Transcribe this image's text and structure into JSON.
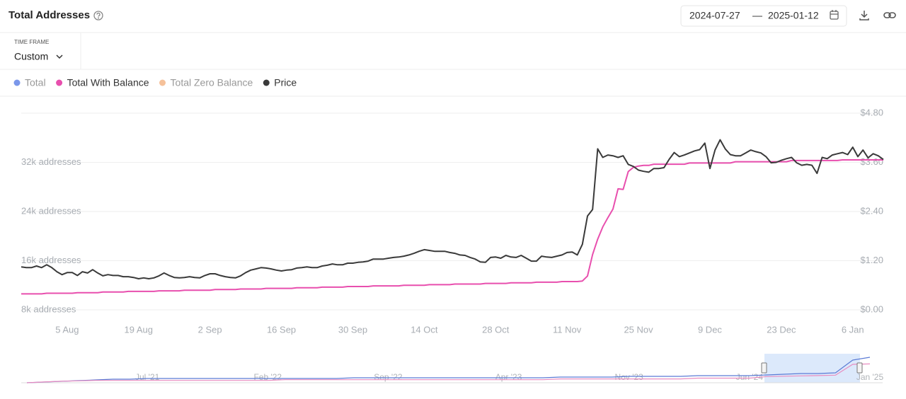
{
  "header": {
    "title": "Total Addresses",
    "date_from": "2024-07-27",
    "date_separator": "—",
    "date_to": "2025-01-12"
  },
  "timeframe": {
    "label": "TIME FRAME",
    "value": "Custom"
  },
  "chart_data": {
    "type": "line",
    "grid": true,
    "categories": [
      null,
      null,
      null,
      null,
      null,
      null,
      null,
      null,
      null,
      "5 Aug",
      null,
      null,
      null,
      null,
      null,
      null,
      null,
      null,
      null,
      null,
      null,
      null,
      null,
      "19 Aug",
      null,
      null,
      null,
      null,
      null,
      null,
      null,
      null,
      null,
      null,
      null,
      null,
      null,
      "2 Sep",
      null,
      null,
      null,
      null,
      null,
      null,
      null,
      null,
      null,
      null,
      null,
      null,
      null,
      "16 Sep",
      null,
      null,
      null,
      null,
      null,
      null,
      null,
      null,
      null,
      null,
      null,
      null,
      null,
      "30 Sep",
      null,
      null,
      null,
      null,
      null,
      null,
      null,
      null,
      null,
      null,
      null,
      null,
      null,
      "14 Oct",
      null,
      null,
      null,
      null,
      null,
      null,
      null,
      null,
      null,
      null,
      null,
      null,
      null,
      "28 Oct",
      null,
      null,
      null,
      null,
      null,
      null,
      null,
      null,
      null,
      null,
      null,
      null,
      null,
      "11 Nov",
      null,
      null,
      null,
      null,
      null,
      null,
      null,
      null,
      null,
      null,
      null,
      null,
      null,
      "25 Nov",
      null,
      null,
      null,
      null,
      null,
      null,
      null,
      null,
      null,
      null,
      null,
      null,
      null,
      "9 Dec",
      null,
      null,
      null,
      null,
      null,
      null,
      null,
      null,
      null,
      null,
      null,
      null,
      null,
      "23 Dec",
      null,
      null,
      null,
      null,
      null,
      null,
      null,
      null,
      null,
      null,
      null,
      null,
      null,
      "6 Jan",
      null,
      null,
      null,
      null,
      null,
      null
    ],
    "ylim": [
      8000,
      40000
    ],
    "yticks": [
      {
        "value": 8000,
        "label": "8k addresses"
      },
      {
        "value": 16000,
        "label": "16k addresses"
      },
      {
        "value": 24000,
        "label": "24k addresses"
      },
      {
        "value": 32000,
        "label": "32k addresses"
      }
    ],
    "y2lim": [
      0,
      4.8
    ],
    "y2ticks": [
      {
        "value": 0,
        "label": "$0.00"
      },
      {
        "value": 1.2,
        "label": "$1.20"
      },
      {
        "value": 2.4,
        "label": "$2.40"
      },
      {
        "value": 3.6,
        "label": "$3.60"
      },
      {
        "value": 4.8,
        "label": "$4.80"
      }
    ],
    "series": [
      {
        "name": "Total",
        "color": "#7b97ea",
        "visible": false
      },
      {
        "name": "Total With Balance",
        "color": "#e84fae",
        "visible": true,
        "values": [
          10600,
          10600,
          10600,
          10600,
          10600,
          10700,
          10700,
          10700,
          10700,
          10700,
          10700,
          10800,
          10800,
          10800,
          10800,
          10800,
          10900,
          10900,
          10900,
          10900,
          10900,
          11000,
          11000,
          11000,
          11000,
          11000,
          11000,
          11100,
          11100,
          11100,
          11100,
          11100,
          11200,
          11200,
          11200,
          11200,
          11200,
          11200,
          11300,
          11300,
          11300,
          11300,
          11300,
          11400,
          11400,
          11400,
          11400,
          11400,
          11500,
          11500,
          11500,
          11500,
          11500,
          11500,
          11600,
          11600,
          11600,
          11600,
          11600,
          11700,
          11700,
          11700,
          11700,
          11700,
          11800,
          11800,
          11800,
          11800,
          11800,
          11900,
          11900,
          11900,
          11900,
          11900,
          11900,
          12000,
          12000,
          12000,
          12000,
          12000,
          12100,
          12100,
          12100,
          12100,
          12100,
          12200,
          12200,
          12200,
          12200,
          12200,
          12200,
          12300,
          12300,
          12300,
          12300,
          12300,
          12400,
          12400,
          12400,
          12400,
          12400,
          12500,
          12500,
          12500,
          12500,
          12500,
          12600,
          12600,
          12600,
          12600,
          12700,
          13500,
          17000,
          19500,
          21500,
          23000,
          24400,
          27700,
          27600,
          30500,
          31200,
          31400,
          31500,
          31500,
          31700,
          31700,
          31700,
          31700,
          31700,
          31700,
          31700,
          31900,
          31900,
          31900,
          31900,
          31900,
          31900,
          31900,
          31900,
          31900,
          32100,
          32100,
          32100,
          32100,
          32100,
          32100,
          32100,
          32100,
          32100,
          32100,
          32100,
          32300,
          32300,
          32300,
          32300,
          32300,
          32300,
          32300,
          32300,
          32300,
          32300,
          32400,
          32400,
          32400,
          32400,
          32400,
          32400,
          32400,
          32400,
          32400
        ]
      },
      {
        "name": "Total Zero Balance",
        "color": "#f5c19a",
        "visible": false
      },
      {
        "name": "Price",
        "color": "#3a3a3a",
        "visible": true,
        "axis": "y2",
        "values": [
          1.05,
          1.03,
          1.03,
          1.07,
          1.03,
          1.1,
          1.03,
          0.93,
          0.86,
          0.91,
          0.91,
          0.84,
          0.93,
          0.9,
          0.98,
          0.9,
          0.83,
          0.86,
          0.84,
          0.84,
          0.81,
          0.81,
          0.79,
          0.76,
          0.78,
          0.76,
          0.78,
          0.83,
          0.9,
          0.84,
          0.79,
          0.78,
          0.79,
          0.81,
          0.79,
          0.78,
          0.84,
          0.88,
          0.88,
          0.84,
          0.81,
          0.79,
          0.78,
          0.83,
          0.91,
          0.97,
          1.0,
          1.03,
          1.02,
          1.0,
          0.97,
          0.95,
          0.97,
          0.98,
          1.02,
          1.03,
          1.05,
          1.03,
          1.03,
          1.07,
          1.09,
          1.12,
          1.1,
          1.1,
          1.14,
          1.14,
          1.16,
          1.17,
          1.19,
          1.24,
          1.24,
          1.24,
          1.26,
          1.28,
          1.29,
          1.31,
          1.34,
          1.38,
          1.43,
          1.47,
          1.45,
          1.43,
          1.43,
          1.43,
          1.4,
          1.38,
          1.34,
          1.33,
          1.28,
          1.24,
          1.17,
          1.16,
          1.28,
          1.29,
          1.26,
          1.33,
          1.29,
          1.28,
          1.33,
          1.26,
          1.19,
          1.19,
          1.31,
          1.29,
          1.28,
          1.31,
          1.34,
          1.4,
          1.41,
          1.34,
          1.6,
          2.29,
          2.45,
          3.93,
          3.72,
          3.78,
          3.76,
          3.72,
          3.76,
          3.55,
          3.5,
          3.41,
          3.38,
          3.36,
          3.45,
          3.45,
          3.47,
          3.67,
          3.84,
          3.74,
          3.78,
          3.83,
          3.88,
          3.91,
          4.07,
          3.45,
          3.9,
          4.15,
          3.93,
          3.79,
          3.76,
          3.76,
          3.83,
          3.9,
          3.86,
          3.83,
          3.74,
          3.59,
          3.6,
          3.65,
          3.69,
          3.72,
          3.59,
          3.53,
          3.55,
          3.53,
          3.33,
          3.72,
          3.69,
          3.78,
          3.81,
          3.84,
          3.79,
          3.97,
          3.74,
          3.9,
          3.71,
          3.81,
          3.76,
          3.67
        ]
      }
    ]
  },
  "navigator": {
    "type": "line",
    "ylim": [
      0,
      50000
    ],
    "categories": [
      null,
      null,
      null,
      null,
      null,
      null,
      null,
      "Jul '21",
      null,
      null,
      null,
      null,
      null,
      null,
      "Feb '22",
      null,
      null,
      null,
      null,
      null,
      null,
      "Sep '22",
      null,
      null,
      null,
      null,
      null,
      null,
      "Apr '23",
      null,
      null,
      null,
      null,
      null,
      null,
      "Nov '23",
      null,
      null,
      null,
      null,
      null,
      null,
      "Jun '24",
      null,
      null,
      null,
      null,
      null,
      null,
      "Jan '25"
    ],
    "series": [
      {
        "color": "#5b7bd5",
        "values": [
          0,
          1200,
          2400,
          3700,
          4900,
          6100,
          6100,
          7300,
          7300,
          7300,
          7300,
          7300,
          7300,
          7300,
          7300,
          7300,
          7300,
          7300,
          7300,
          8500,
          8500,
          8500,
          8500,
          8500,
          8500,
          8500,
          8500,
          8500,
          8500,
          8500,
          8500,
          9800,
          9800,
          9800,
          9800,
          11000,
          11000,
          11000,
          11000,
          12200,
          12200,
          12200,
          12200,
          13400,
          14600,
          15900,
          15900,
          17100,
          39000,
          43900
        ]
      },
      {
        "color": "#e88cc0",
        "values": [
          0,
          1300,
          2600,
          3300,
          4000,
          4000,
          4000,
          4000,
          4000,
          4000,
          4000,
          4000,
          4000,
          4000,
          4000,
          5300,
          5300,
          5300,
          5300,
          5300,
          5300,
          5300,
          5300,
          5300,
          5300,
          5300,
          5300,
          5300,
          5300,
          5300,
          5300,
          6600,
          6600,
          6600,
          6600,
          6600,
          6600,
          6600,
          6600,
          7900,
          7900,
          7900,
          7900,
          10600,
          11200,
          11800,
          12300,
          13000,
          31700,
          32400
        ]
      }
    ]
  }
}
